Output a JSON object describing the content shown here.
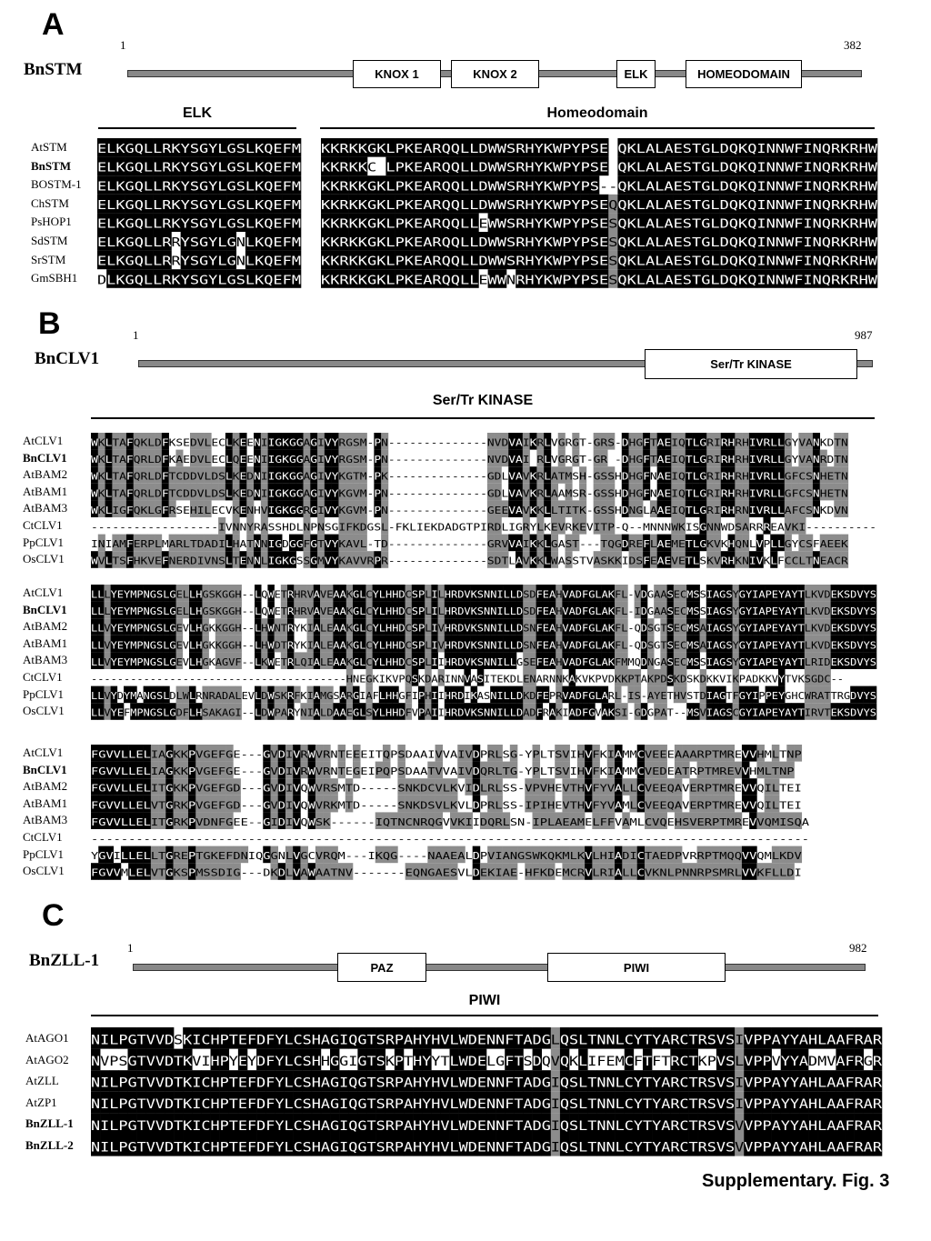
{
  "panels": [
    {
      "letter": "A",
      "protein": "BnSTM",
      "start": "1",
      "end": "382",
      "domains": [
        "KNOX 1",
        "KNOX 2",
        "ELK",
        "HOMEODOMAIN"
      ],
      "regions": [
        "ELK",
        "Homeodomain"
      ],
      "species": [
        "AtSTM",
        "BnSTM",
        "BOSTM-1",
        "ChSTM",
        "PsHOP1",
        "SdSTM",
        "SrSTM",
        "GmSBH1"
      ],
      "bold_species": [
        "BnSTM"
      ],
      "blocks": [
        [
          "ELKGQLLRKYSGYLGSLKQEFM",
          "ELKGQLLRKYSGYLGSLKQEFM",
          "ELKGQLLRKYSGYLGSLKQEFM",
          "ELKGQLLRKYSGYLGSLKQEFM",
          "ELKGQLLRKYSGYLGSLKQEFM",
          "ELKGQLLRRYSGYLGNLKQEFM",
          "ELKGQLLRRYSGYLGNLKQEFM",
          "DLKGQLLRKYSGYLGSLKQEFM"
        ],
        [
          "KKRKKGKLPKEARQQLLDWWSRHYKWPYPSE QKLALAESTGLDQKQINNWFINQRKRHW",
          "KKRKKC LPKEARQQLLDWWSRHYKWPYPSE QKLALAESTGLDQKQINNWFINQRKRHW",
          "KKRKKGKLPKEARQQLLDWWSRHYKWPYPS--QKLALAESTGLDQKQINNWFINQRKRHW",
          "KKRKKGKLPKEARQQLLDWWSRHYKWPYPSEQQKLALAESTGLDQKQINNWFINQRKRHW",
          "KKRKKGKLPKEARQQLLEWWSRHYKWPYPSESQKLALAESTGLDQKQINNWFINQRKRHW",
          "KKRKKGKLPKEARQQLLDWWSRHYKWPYPSESQKLALAESTGLDQKQINNWFINQRKRHW",
          "KKRKKGKLPKEARQQLLDWWSRHYKWPYPSESQKLALAESTGLDQKQINNWFINQRKRHW",
          "KKRKKGKLPKEARQQLLEWWNRHYKWPYPSESQKLALAESTGLDQKQINNWFINQRKRHW"
        ]
      ]
    },
    {
      "letter": "B",
      "protein": "BnCLV1",
      "start": "1",
      "end": "987",
      "domains": [
        "Ser/Tr KINASE"
      ],
      "regions": [
        "Ser/Tr KINASE"
      ],
      "species": [
        "AtCLV1",
        "BnCLV1",
        "AtBAM2",
        "AtBAM1",
        "AtBAM3",
        "CtCLV1",
        "PpCLV1",
        "OsCLV1"
      ],
      "bold_species": [
        "BnCLV1"
      ],
      "blocks": [
        [
          "WKLTAFQKLDFKSEDVLECLKEENIIGKGGAGIVYRGSM-PN--------------NVDVAIKRLVGRGT-GRS-DHGFTAEIQTLGRIRHRHIVRLLGYVANKDTN",
          "WKLTAFQRLDFKAEDVLECLQEENIIGKGGAGIVYRGSM-PN--------------NVDVAI RLVGRGT-GR -DHGFTAEIQTLGRIRHRHIVRLLGYVANRDTN",
          "WKLTAFQRLDFTCDDVLDSLKEDNIIGKGGAGIVYKGTM-PK--------------GDLVAVKRLATMSH-GSSHDHGFNAEIQTLGRIRHRHIVRLLGFCSNHETN",
          "WKLTAFQRLDFTCDDVLDSLKEDNIIGKGGAGIVYKGVM-PN--------------GDLVAVKRLAAMSR-GSSHDHGFNAEIQTLGRIRHRHIVRLLGFCSNHETN",
          "WKLIGFQKLGFRSEHILECVKENHVIGKGGRGIVYKGVM-PN--------------GEEVAVKKLLTITK-GSSHDNGLAAEIQTLGRIRHRNIVRLLAFCSNKDVN",
          "------------------IVNNYRASSHDLNPNSGIFKDGSL-FKLIEKDADGTPIRDLIGRYLKEVRKEVITP-Q--MNNNWKISGNNWDSARRREAVKI----------",
          "INIAMFERPLMARLTDADILHATNNIGDGGFGTVYKAVL-TD--------------GRVVAIKKLGAST---TQGDREFLAEMETLGKVKHQNLVPLLGYCSFAEEK",
          "WVLTSFHKVEFNERDIVNSLTENNLIGKGSSGMVYKAVVRPR--------------SDTLAVKKLWASSTVASKKIDSFEAEVETLSKVRHKNIVKLFCCLTNEACR"
        ],
        [
          "LLLYEYMPNGSLGELLHGSKGGH--LQWETRHRVAVEAAKGLCYLHHDCSPLILHRDVKSNNILLDSDFEAHVADFGLAKFL-VDGAASECMSSIAGSYGYIAPEYAYTLKVDEKSDVYS",
          "LLLYEYMPNGSLGELLHGSKGGH--LQWETRHRVAVEAAKGLCYLHHDCSPLILHRDVKSNNILLDSDFEAHVADFGLAKFL-IDGAASECMSSIAGSYGYIAPEYAYTLKVDEKSDVYS",
          "LLVYEYMPNGSLGEVLHGKKGGH--LHWNTRYKIALEAAKGLCYLHHDCSPLIVHRDVKSNNILLDSNFEAHVADFGLAKFL-QDSGTSECMSAIAGSYGYIAPEYAYTLKVDEKSDVYS",
          "LLVYEYMPNGSLGEVLHGKKGGH--LHWDTRYKIALEAAKGLCYLHHDCSPLIVHRDVKSNNILLDSNFEAHVADFGLAKFL-QDSGTSECMSAIAGSYGYIAPEYAYTLKVDEKSDVYS",
          "LLVYEYMPNGSLGEVLHGKAGVF--LKWETRLQIALEAAKGLCYLHHDCSPLIIHRDVKSNNILLGSEFEAHVADFGLAKFMMQDNGASECMSSIAGSYGYIAPEYAYTLRIDEKSDVYS",
          "---------------------------------------HNEGKIKVPQSKDARINNVASITEKDLENARNNKAKVKPVDKKPTAKPDSKDSKDKKVIKPADKKVYTVKSGDC--",
          "LLVYDYMANGSLDLWLRNRADALEVLDWSKRFKIAMGSARGIAFLHHGFIPHIIHRDIKASNILLDKDFEPRVADFGLARL-IS-AYETHVSTDIAGTFGYIPPEYGHCWRATTRGDVYS",
          "LLVYEFMPNGSLGDFLHSAKAGI--LDWPARYNIALDAAEGLSYLHHDFVPAIIHRDVKSNNILLDADFRAKIADFGVAKSI-GDGPAT--MSVIAGSCGYIAPEYAYTIRVTEKSDVYS"
        ],
        [
          "FGVVLLELIAGKKPVGEFGE---GVDIVRWVRNTEEEITQPSDAAIVVAIVDPRLSG-YPLTSVIHVFKIAMMCVEEEAAARPTMREVVHMLTNP",
          "FGVVLLELIAGKKPVGEFGE---GVDIVRWVRNTEGEIPQPSDAATVVAIVDQRLTG-YPLTSVIHVFKIAMMCVEDEATRPTMREVVHMLTNP",
          "FGVVLLELITGKKPVGEFGD---GVDIVQWVRSMTD-----SNKDCVLKVIDLRLSS-VPVHEVTHVFYVALLCVEEQAVERPTMREVVQILTEI",
          "FGVVLLELVTGRKPVGEFGD---GVDIVQWVRKMTD-----SNKDSVLKVLDPRLSS-IPIHEVTHVFYVAMLCVEEQAVERPTMREVVQILTEI",
          "FGVVLLELITGRKPVDNFGEE--GIDIVQWSK------IQTNCNRQGVVKIIDQRLSN-IPLAEAMELFFVAMLCVQEHSVERPTMREVVQMISQA",
          "------------------------------------------------------------------------------------------------",
          "YGVILLELLTGREPTGKEFDNIQGGNLVGCVRQM---IKQG----NAAEALDPVIANGSWKQKMLKVLHIADICTAEDPVRRPTMQQVVQMLKDV",
          "FGVVMLELVTGKSPMSSDIG---DKDLVAWAATNV-------EQNGAESVLDEKIAE-HFKDEMCRVLRIALLCVKNLPNNRPSMRLVVKFLLDI"
        ]
      ]
    },
    {
      "letter": "C",
      "protein": "BnZLL-1",
      "start": "1",
      "end": "982",
      "domains": [
        "PAZ",
        "PIWI"
      ],
      "regions": [
        "PIWI"
      ],
      "species": [
        "AtAGO1",
        "AtAGO2",
        "AtZLL",
        "AtZP1",
        "BnZLL-1",
        "BnZLL-2"
      ],
      "bold_species": [
        "BnZLL-1",
        "BnZLL-2"
      ],
      "blocks": [
        [
          "NILPGTVVDSKICHPTEFDFYLCSHAGIQGTSRPAHYHVLWDENNFTADGLQSLTNNLCYTYARCTRSVSIVPPAYYAHLAAFRAR",
          "NVPSGTVVDTKVIHPYEYDFYLCSHHGGIGTSKPTHYYTLWDELGFTSDQVQKLIFEMCFTFTRCTKPVSLVPPVYYADMVAFRGR",
          "NILPGTVVDTKICHPTEFDFYLCSHAGIQGTSRPAHYHVLWDENNFTADGIQSLTNNLCYTYARCTRSVSIVPPAYYAHLAAFRAR",
          "NILPGTVVDTKICHPTEFDFYLCSHAGIQGTSRPAHYHVLWDENNFTADGIQSLTNNLCYTYARCTRSVSIVPPAYYAHLAAFRAR",
          "NILPGTVVDTKICHPTEFDFYLCSHAGIQGTSRPAHYHVLWDENNFTADGIQSLTNNLCYTYARCTRSVSVVPPAYYAHLAAFRAR",
          "NILPGTVVDTKICHPTEFDFYLCSHAGIQGTSRPAHYHVLWDENNFTADGIQSLTNNLCYTYARCTRSVSVVPPAYYAHLAAFRAR"
        ]
      ]
    }
  ],
  "caption": "Supplementary. Fig. 3",
  "colors": {
    "identical": "#000000",
    "similar": "#8c8c8c",
    "none": "#ffffff",
    "bar": "#888888"
  }
}
